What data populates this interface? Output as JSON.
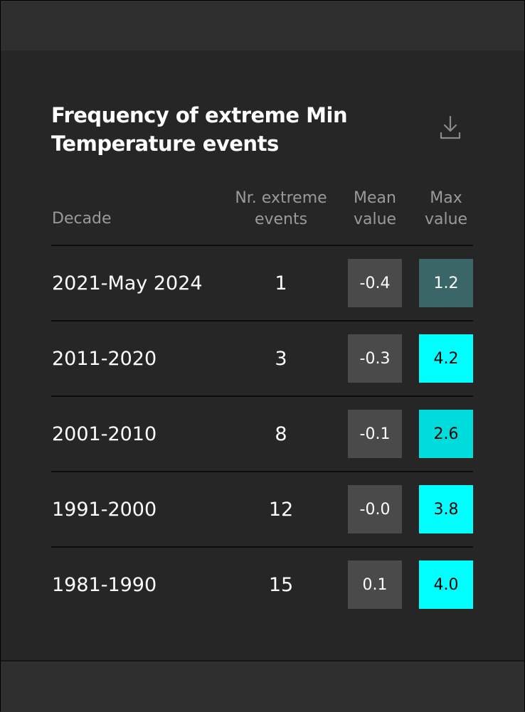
{
  "widget": {
    "title": "Frequency of extreme Min Temperature events",
    "download_icon": "download-icon"
  },
  "table": {
    "headers": {
      "decade": "Decade",
      "events": "Nr. extreme events",
      "mean": "Mean value",
      "max": "Max value"
    },
    "rows": [
      {
        "decade": "2021-May 2024",
        "events": "1",
        "mean": "-0.4",
        "max": "1.2",
        "max_bg": "#3a6668",
        "max_fg": "#ffffff"
      },
      {
        "decade": "2011-2020",
        "events": "3",
        "mean": "-0.3",
        "max": "4.2",
        "max_bg": "#00ffff",
        "max_fg": "#000000"
      },
      {
        "decade": "2001-2010",
        "events": "8",
        "mean": "-0.1",
        "max": "2.6",
        "max_bg": "#00dcdc",
        "max_fg": "#000000"
      },
      {
        "decade": "1991-2000",
        "events": "12",
        "mean": "-0.0",
        "max": "3.8",
        "max_bg": "#00ffff",
        "max_fg": "#000000"
      },
      {
        "decade": "1981-1990",
        "events": "15",
        "mean": "0.1",
        "max": "4.0",
        "max_bg": "#00ffff",
        "max_fg": "#000000"
      }
    ]
  }
}
